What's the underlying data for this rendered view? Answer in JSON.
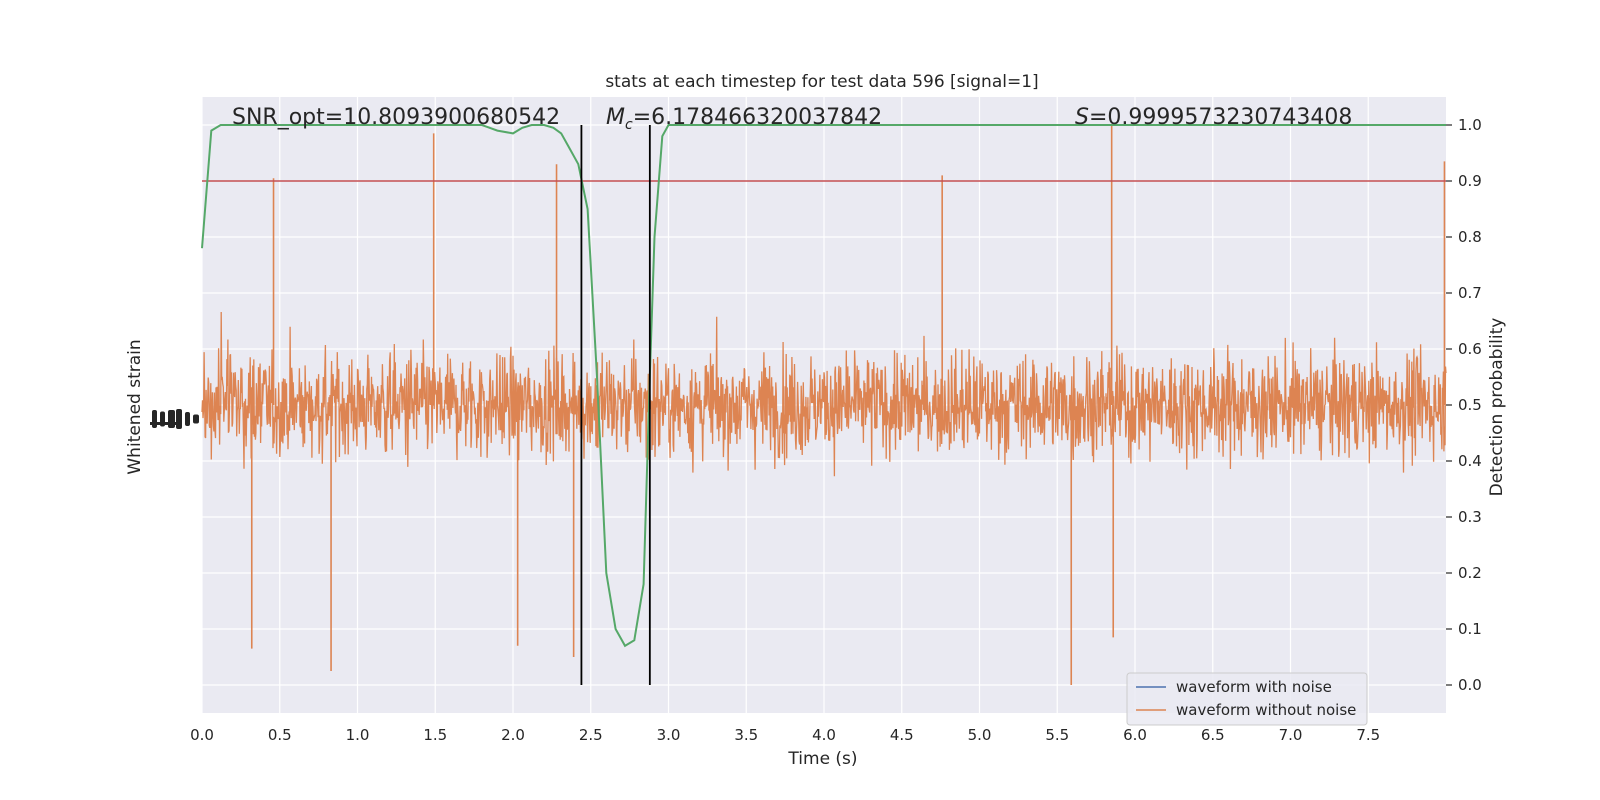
{
  "chart_data": {
    "type": "line",
    "title": "stats at each timestep for test data 596 [signal=1]",
    "xlabel": "Time (s)",
    "ylabel_left": "Whitened strain",
    "ylabel_right": "Detection probability",
    "xlim": [
      0.0,
      8.0
    ],
    "right_ylim": [
      -0.05,
      1.05
    ],
    "x_ticks": [
      0.0,
      0.5,
      1.0,
      1.5,
      2.0,
      2.5,
      3.0,
      3.5,
      4.0,
      4.5,
      5.0,
      5.5,
      6.0,
      6.5,
      7.0,
      7.5
    ],
    "x_tick_labels": [
      "0.0",
      "0.5",
      "1.0",
      "1.5",
      "2.0",
      "2.5",
      "3.0",
      "3.5",
      "4.0",
      "4.5",
      "5.0",
      "5.5",
      "6.0",
      "6.5",
      "7.0",
      "7.5"
    ],
    "right_y_ticks": [
      0.0,
      0.1,
      0.2,
      0.3,
      0.4,
      0.5,
      0.6,
      0.7,
      0.8,
      0.9,
      1.0
    ],
    "right_y_tick_labels": [
      "0.0",
      "0.1",
      "0.2",
      "0.3",
      "0.4",
      "0.5",
      "0.6",
      "0.7",
      "0.8",
      "0.9",
      "1.0"
    ],
    "grid": true,
    "legend_position": "bottom-right",
    "annotations": {
      "snr": "SNR_opt=10.8093900680542",
      "mc_symbol": "M",
      "mc_subscript": "c",
      "mc_value": "=6.178466320037842",
      "s_symbol": "S",
      "s_value": "=0.9999573230743408"
    },
    "series": [
      {
        "name": "waveform with noise",
        "color": "#4c72b0",
        "values": []
      },
      {
        "name": "waveform without noise",
        "color": "#dd8452",
        "style": "dense-noise",
        "approx_right_axis_range": [
          0.0,
          1.0
        ],
        "center": 0.5,
        "notable_peaks": [
          {
            "x": 1.49,
            "y": 0.985
          },
          {
            "x": 2.28,
            "y": 0.93
          },
          {
            "x": 0.46,
            "y": 0.905
          },
          {
            "x": 4.76,
            "y": 0.91
          },
          {
            "x": 5.85,
            "y": 1.0
          },
          {
            "x": 7.99,
            "y": 0.935
          }
        ],
        "notable_troughs": [
          {
            "x": 0.83,
            "y": 0.025
          },
          {
            "x": 0.32,
            "y": 0.065
          },
          {
            "x": 2.03,
            "y": 0.07
          },
          {
            "x": 2.39,
            "y": 0.05
          },
          {
            "x": 5.59,
            "y": 0.0
          },
          {
            "x": 5.86,
            "y": 0.085
          }
        ]
      },
      {
        "name": "detection probability",
        "color": "#55a868",
        "x": [
          0.0,
          0.06,
          0.12,
          0.5,
          1.0,
          1.5,
          1.8,
          1.9,
          2.0,
          2.06,
          2.12,
          2.2,
          2.26,
          2.31,
          2.36,
          2.42,
          2.48,
          2.54,
          2.6,
          2.66,
          2.72,
          2.78,
          2.84,
          2.88,
          2.91,
          2.96,
          3.0,
          3.5,
          4.0,
          5.0,
          6.0,
          7.0,
          8.0
        ],
        "y": [
          0.78,
          0.99,
          1.0,
          1.0,
          1.0,
          1.0,
          1.0,
          0.99,
          0.985,
          0.995,
          1.0,
          1.0,
          0.995,
          0.985,
          0.96,
          0.93,
          0.85,
          0.55,
          0.2,
          0.1,
          0.07,
          0.08,
          0.18,
          0.55,
          0.8,
          0.98,
          1.0,
          1.0,
          1.0,
          1.0,
          1.0,
          1.0,
          1.0
        ]
      }
    ],
    "threshold": {
      "y": 0.9,
      "color": "#c44e52"
    },
    "vertical_lines": [
      2.44,
      2.88
    ],
    "vertical_line_color": "#000000"
  }
}
